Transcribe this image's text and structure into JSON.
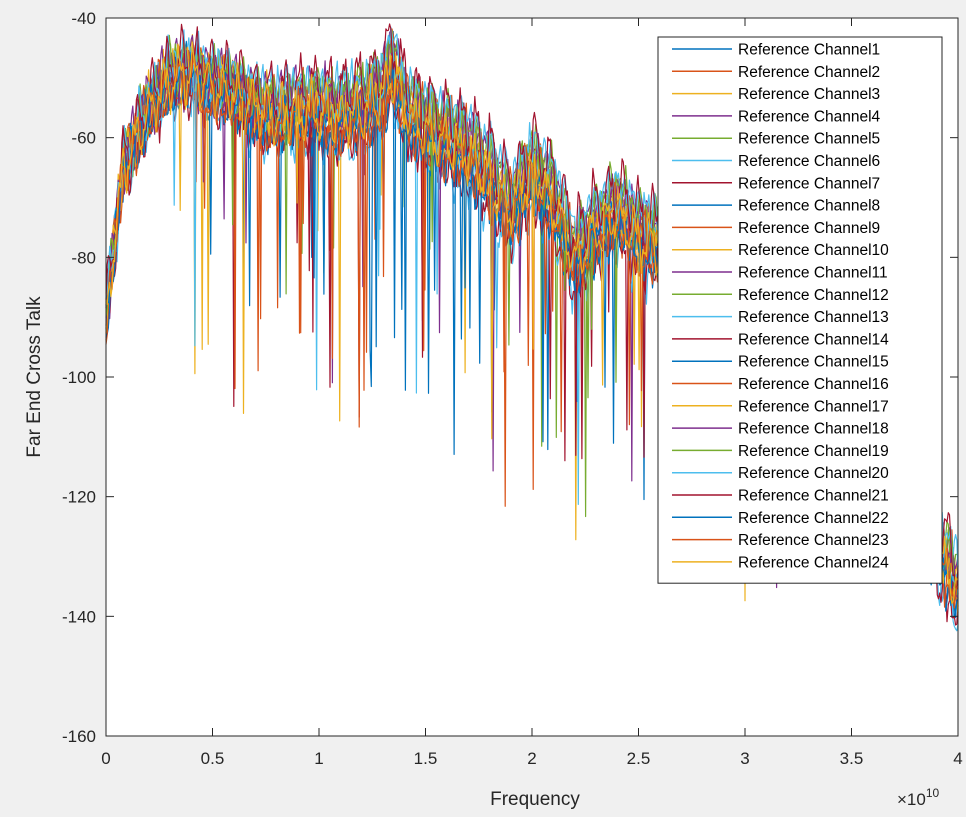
{
  "chart_data": {
    "type": "line",
    "title": "",
    "xlabel": "Frequency",
    "ylabel": "Far End Cross Talk",
    "x_exponent_label": "×10",
    "x_exponent": "10",
    "xlim": [
      0,
      40000000000.0
    ],
    "ylim": [
      -160,
      -40
    ],
    "x_tick_values": [
      0,
      5000000000.0,
      10000000000.0,
      15000000000.0,
      20000000000.0,
      25000000000.0,
      30000000000.0,
      35000000000.0,
      40000000000.0
    ],
    "x_tick_labels": [
      "0",
      "0.5",
      "1",
      "1.5",
      "2",
      "2.5",
      "3",
      "3.5",
      "4"
    ],
    "y_tick_values": [
      -160,
      -140,
      -120,
      -100,
      -80,
      -60,
      -40
    ],
    "y_tick_labels": [
      "-160",
      "-140",
      "-120",
      "-100",
      "-80",
      "-60",
      "-40"
    ],
    "grid": false,
    "legend_position": "top-right",
    "envelope_x_ghz": [
      0,
      0.8,
      2,
      3,
      4,
      5,
      6,
      7,
      8,
      9,
      10,
      11,
      12,
      13,
      13.5,
      14,
      15,
      16,
      17,
      18,
      19,
      20,
      21,
      22,
      23,
      24,
      25,
      26,
      27,
      28,
      29,
      30,
      31,
      32,
      33,
      34,
      35,
      36,
      37,
      38,
      39,
      40
    ],
    "envelope_y_db": [
      -90,
      -65,
      -55,
      -50,
      -49,
      -51,
      -52,
      -55,
      -56,
      -55,
      -55,
      -56,
      -55,
      -52,
      -48,
      -55,
      -58,
      -60,
      -62,
      -66,
      -72,
      -65,
      -70,
      -80,
      -75,
      -72,
      -76,
      -78,
      -76,
      -80,
      -82,
      -85,
      -88,
      -90,
      -95,
      -100,
      -105,
      -110,
      -118,
      -122,
      -128,
      -135
    ],
    "series": [
      {
        "name": "Reference Channel1",
        "color": "#0072BD"
      },
      {
        "name": "Reference Channel2",
        "color": "#D95319"
      },
      {
        "name": "Reference Channel3",
        "color": "#EDB120"
      },
      {
        "name": "Reference Channel4",
        "color": "#7E2F8E"
      },
      {
        "name": "Reference Channel5",
        "color": "#77AC30"
      },
      {
        "name": "Reference Channel6",
        "color": "#4DBEEE"
      },
      {
        "name": "Reference Channel7",
        "color": "#A2142F"
      },
      {
        "name": "Reference Channel8",
        "color": "#0072BD"
      },
      {
        "name": "Reference Channel9",
        "color": "#D95319"
      },
      {
        "name": "Reference Channel10",
        "color": "#EDB120"
      },
      {
        "name": "Reference Channel11",
        "color": "#7E2F8E"
      },
      {
        "name": "Reference Channel12",
        "color": "#77AC30"
      },
      {
        "name": "Reference Channel13",
        "color": "#4DBEEE"
      },
      {
        "name": "Reference Channel14",
        "color": "#A2142F"
      },
      {
        "name": "Reference Channel15",
        "color": "#0072BD"
      },
      {
        "name": "Reference Channel16",
        "color": "#D95319"
      },
      {
        "name": "Reference Channel17",
        "color": "#EDB120"
      },
      {
        "name": "Reference Channel18",
        "color": "#7E2F8E"
      },
      {
        "name": "Reference Channel19",
        "color": "#77AC30"
      },
      {
        "name": "Reference Channel20",
        "color": "#4DBEEE"
      },
      {
        "name": "Reference Channel21",
        "color": "#A2142F"
      },
      {
        "name": "Reference Channel22",
        "color": "#0072BD"
      },
      {
        "name": "Reference Channel23",
        "color": "#D95319"
      },
      {
        "name": "Reference Channel24",
        "color": "#EDB120"
      }
    ]
  }
}
